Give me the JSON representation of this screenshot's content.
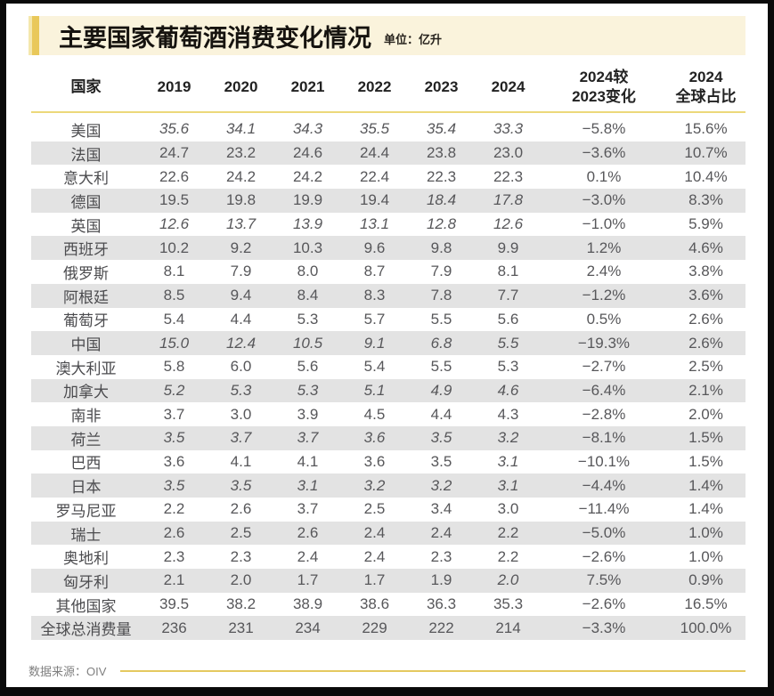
{
  "title": "主要国家葡萄酒消费变化情况",
  "unit_label": "单位：亿升",
  "source_label": "数据来源：OIV",
  "colors": {
    "frame_black": "#0a0a0a",
    "banner_bg": "#faf3dc",
    "accent_gold": "#e9c85a",
    "divider_yellow": "#ecd87a",
    "stripe_gray": "#e3e3e3",
    "text_dark": "#222222",
    "text_data": "#57575a"
  },
  "chart_data": {
    "type": "table",
    "title": "主要国家葡萄酒消费变化情况",
    "unit": "亿升",
    "source": "OIV",
    "columns": [
      "国家",
      "2019",
      "2020",
      "2021",
      "2022",
      "2023",
      "2024",
      "2024较\n2023变化",
      "2024\n全球占比"
    ],
    "rows": [
      {
        "country": "美国",
        "values": [
          "35.6",
          "34.1",
          "34.3",
          "35.5",
          "35.4",
          "33.3"
        ],
        "italic": [
          1,
          1,
          1,
          1,
          1,
          1
        ],
        "change": "−5.8%",
        "share": "15.6%"
      },
      {
        "country": "法国",
        "values": [
          "24.7",
          "23.2",
          "24.6",
          "24.4",
          "23.8",
          "23.0"
        ],
        "italic": [
          0,
          0,
          0,
          0,
          0,
          0
        ],
        "change": "−3.6%",
        "share": "10.7%"
      },
      {
        "country": "意大利",
        "values": [
          "22.6",
          "24.2",
          "24.2",
          "22.4",
          "22.3",
          "22.3"
        ],
        "italic": [
          0,
          0,
          0,
          0,
          0,
          0
        ],
        "change": "0.1%",
        "share": "10.4%"
      },
      {
        "country": "德国",
        "values": [
          "19.5",
          "19.8",
          "19.9",
          "19.4",
          "18.4",
          "17.8"
        ],
        "italic": [
          0,
          0,
          0,
          0,
          1,
          1
        ],
        "change": "−3.0%",
        "share": "8.3%"
      },
      {
        "country": "英国",
        "values": [
          "12.6",
          "13.7",
          "13.9",
          "13.1",
          "12.8",
          "12.6"
        ],
        "italic": [
          1,
          1,
          1,
          1,
          1,
          1
        ],
        "change": "−1.0%",
        "share": "5.9%"
      },
      {
        "country": "西班牙",
        "values": [
          "10.2",
          "9.2",
          "10.3",
          "9.6",
          "9.8",
          "9.9"
        ],
        "italic": [
          0,
          0,
          0,
          0,
          0,
          0
        ],
        "change": "1.2%",
        "share": "4.6%"
      },
      {
        "country": "俄罗斯",
        "values": [
          "8.1",
          "7.9",
          "8.0",
          "8.7",
          "7.9",
          "8.1"
        ],
        "italic": [
          0,
          0,
          0,
          0,
          0,
          0
        ],
        "change": "2.4%",
        "share": "3.8%"
      },
      {
        "country": "阿根廷",
        "values": [
          "8.5",
          "9.4",
          "8.4",
          "8.3",
          "7.8",
          "7.7"
        ],
        "italic": [
          0,
          0,
          0,
          0,
          0,
          0
        ],
        "change": "−1.2%",
        "share": "3.6%"
      },
      {
        "country": "葡萄牙",
        "values": [
          "5.4",
          "4.4",
          "5.3",
          "5.7",
          "5.5",
          "5.6"
        ],
        "italic": [
          0,
          0,
          0,
          0,
          0,
          0
        ],
        "change": "0.5%",
        "share": "2.6%"
      },
      {
        "country": "中国",
        "values": [
          "15.0",
          "12.4",
          "10.5",
          "9.1",
          "6.8",
          "5.5"
        ],
        "italic": [
          1,
          1,
          1,
          1,
          1,
          1
        ],
        "change": "−19.3%",
        "share": "2.6%"
      },
      {
        "country": "澳大利亚",
        "values": [
          "5.8",
          "6.0",
          "5.6",
          "5.4",
          "5.5",
          "5.3"
        ],
        "italic": [
          0,
          0,
          0,
          0,
          0,
          0
        ],
        "change": "−2.7%",
        "share": "2.5%"
      },
      {
        "country": "加拿大",
        "values": [
          "5.2",
          "5.3",
          "5.3",
          "5.1",
          "4.9",
          "4.6"
        ],
        "italic": [
          1,
          1,
          1,
          1,
          1,
          1
        ],
        "change": "−6.4%",
        "share": "2.1%"
      },
      {
        "country": "南非",
        "values": [
          "3.7",
          "3.0",
          "3.9",
          "4.5",
          "4.4",
          "4.3"
        ],
        "italic": [
          0,
          0,
          0,
          0,
          0,
          0
        ],
        "change": "−2.8%",
        "share": "2.0%"
      },
      {
        "country": "荷兰",
        "values": [
          "3.5",
          "3.7",
          "3.7",
          "3.6",
          "3.5",
          "3.2"
        ],
        "italic": [
          1,
          1,
          1,
          1,
          1,
          1
        ],
        "change": "−8.1%",
        "share": "1.5%"
      },
      {
        "country": "巴西",
        "values": [
          "3.6",
          "4.1",
          "4.1",
          "3.6",
          "3.5",
          "3.1"
        ],
        "italic": [
          0,
          0,
          0,
          0,
          0,
          1
        ],
        "change": "−10.1%",
        "share": "1.5%"
      },
      {
        "country": "日本",
        "values": [
          "3.5",
          "3.5",
          "3.1",
          "3.2",
          "3.2",
          "3.1"
        ],
        "italic": [
          1,
          1,
          1,
          1,
          1,
          1
        ],
        "change": "−4.4%",
        "share": "1.4%"
      },
      {
        "country": "罗马尼亚",
        "values": [
          "2.2",
          "2.6",
          "3.7",
          "2.5",
          "3.4",
          "3.0"
        ],
        "italic": [
          0,
          0,
          0,
          0,
          0,
          0
        ],
        "change": "−11.4%",
        "share": "1.4%"
      },
      {
        "country": "瑞士",
        "values": [
          "2.6",
          "2.5",
          "2.6",
          "2.4",
          "2.4",
          "2.2"
        ],
        "italic": [
          0,
          0,
          0,
          0,
          0,
          0
        ],
        "change": "−5.0%",
        "share": "1.0%"
      },
      {
        "country": "奥地利",
        "values": [
          "2.3",
          "2.3",
          "2.4",
          "2.4",
          "2.3",
          "2.2"
        ],
        "italic": [
          0,
          0,
          0,
          0,
          0,
          0
        ],
        "change": "−2.6%",
        "share": "1.0%"
      },
      {
        "country": "匈牙利",
        "values": [
          "2.1",
          "2.0",
          "1.7",
          "1.7",
          "1.9",
          "2.0"
        ],
        "italic": [
          0,
          0,
          0,
          0,
          0,
          1
        ],
        "change": "7.5%",
        "share": "0.9%"
      },
      {
        "country": "其他国家",
        "values": [
          "39.5",
          "38.2",
          "38.9",
          "38.6",
          "36.3",
          "35.3"
        ],
        "italic": [
          0,
          0,
          0,
          0,
          0,
          0
        ],
        "change": "−2.6%",
        "share": "16.5%"
      },
      {
        "country": "全球总消费量",
        "values": [
          "236",
          "231",
          "234",
          "229",
          "222",
          "214"
        ],
        "italic": [
          0,
          0,
          0,
          0,
          0,
          0
        ],
        "change": "−3.3%",
        "share": "100.0%"
      }
    ]
  }
}
